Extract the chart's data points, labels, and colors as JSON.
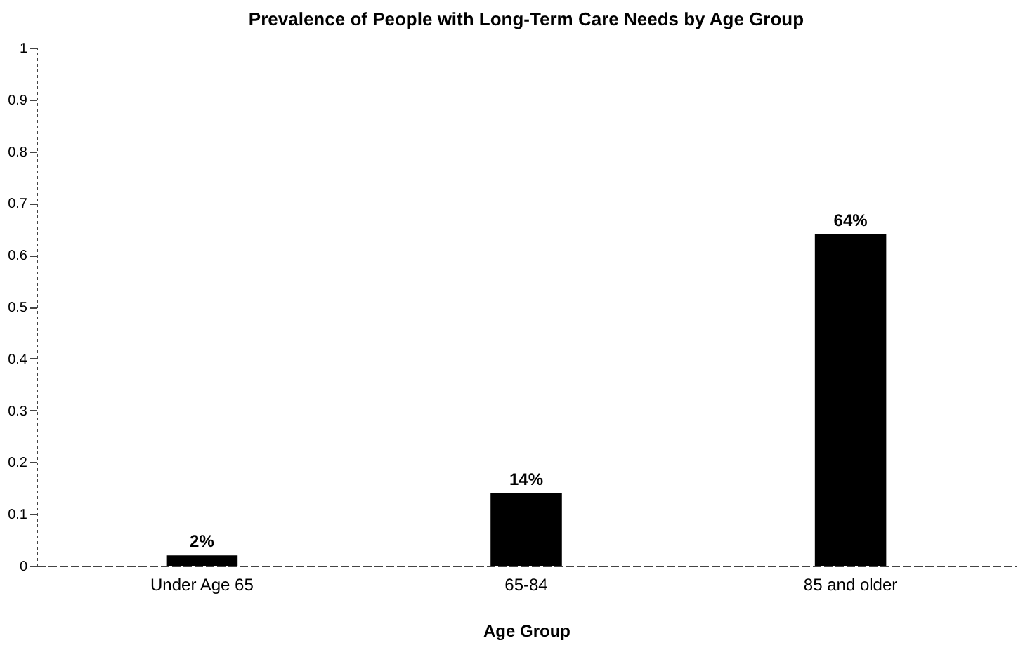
{
  "chart_data": {
    "type": "bar",
    "title": "Prevalence of People with Long-Term Care Needs by Age Group",
    "xlabel": "Age Group",
    "categories": [
      "Under Age 65",
      "65-84",
      "85 and older"
    ],
    "values": [
      0.02,
      0.14,
      0.64
    ],
    "value_labels": [
      "2%",
      "14%",
      "64%"
    ],
    "color": "#000000",
    "ylim": [
      0,
      1
    ],
    "yticks": [
      0,
      0.1,
      0.2,
      0.3,
      0.4,
      0.5,
      0.6,
      0.7,
      0.8,
      0.9,
      1
    ],
    "grid": false
  }
}
